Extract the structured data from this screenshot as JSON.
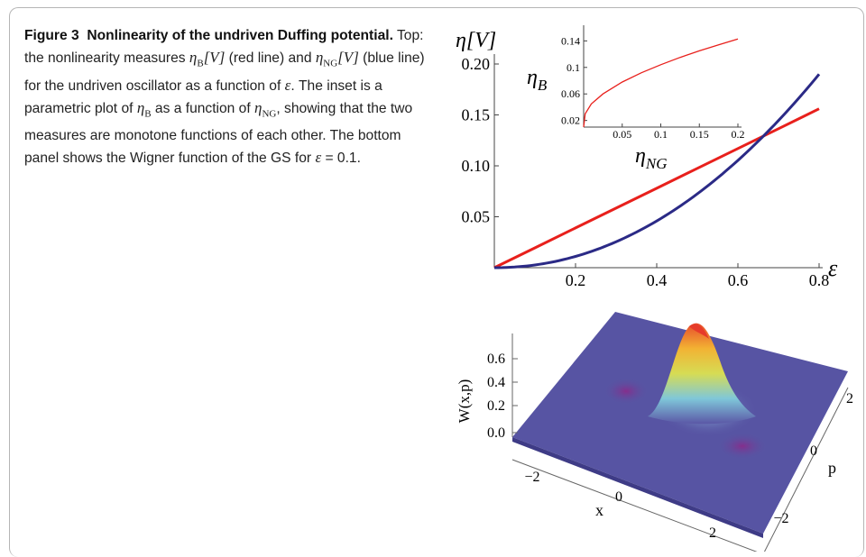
{
  "caption": {
    "figure_label": "Figure 3",
    "title": "Nonlinearity of the undriven Duffing potential.",
    "text_1": "Top: the nonlinearity measures ",
    "eta_b": "η",
    "sub_b": "B",
    "v_unit_1": "[V]",
    "text_2": " (red line) and ",
    "eta_ng": "η",
    "sub_ng": "NG",
    "v_unit_2": "[V]",
    "text_3": " (blue line) for the undriven oscillator as a function of ",
    "eps_1": "ε",
    "text_4": ". The inset is a parametric plot of ",
    "eta_b2": "η",
    "sub_b2": "B",
    "text_5": " as a function of ",
    "eta_ng2": "η",
    "sub_ng2": "NG",
    "text_6": ", showing that the two measures are monotone functions of each other. The bottom panel shows the Wigner function of the GS for ",
    "eps_2": "ε",
    "text_7": " = 0.1."
  },
  "top_plot": {
    "ylabel": "η[V]",
    "xlabel": "ε",
    "yticks": [
      "0.05",
      "0.10",
      "0.15",
      "0.20"
    ],
    "xticks": [
      "0.2",
      "0.4",
      "0.6",
      "0.8"
    ]
  },
  "inset": {
    "ylabel": "η_B",
    "ylabel_main": "η",
    "ylabel_sub": "B",
    "xlabel_main": "η",
    "xlabel_sub": "NG",
    "yticks": [
      "0.02",
      "0.06",
      "0.1",
      "0.14"
    ],
    "xticks": [
      "0.05",
      "0.1",
      "0.15",
      "0.2"
    ]
  },
  "bottom_plot": {
    "zlabel": "W(x,p)",
    "zticks": [
      "0.0",
      "0.2",
      "0.4",
      "0.6"
    ],
    "xlabel": "x",
    "xticks": [
      "−2",
      "0",
      "2"
    ],
    "plabel": "p",
    "pticks": [
      "2",
      "0",
      "−2"
    ]
  },
  "chart_data": [
    {
      "type": "line",
      "x": [
        0.0,
        0.1,
        0.2,
        0.3,
        0.4,
        0.5,
        0.6,
        0.7,
        0.8
      ],
      "series": [
        {
          "values": [
            0.0,
            0.0195,
            0.039,
            0.0585,
            0.078,
            0.0975,
            0.117,
            0.1365,
            0.156
          ],
          "color": "#e8201c"
        },
        {
          "values": [
            0.0,
            0.0028,
            0.0117,
            0.0268,
            0.048,
            0.075,
            0.107,
            0.145,
            0.19
          ],
          "color": "#2b2a86"
        }
      ],
      "xlabel": "ε",
      "ylabel": "η[V]",
      "xlim": [
        0,
        0.8
      ],
      "ylim": [
        0,
        0.2
      ],
      "grid": false
    },
    {
      "type": "line",
      "x": [
        0.0,
        0.002,
        0.01,
        0.025,
        0.05,
        0.075,
        0.1,
        0.125,
        0.15,
        0.175,
        0.2
      ],
      "series": [
        {
          "values": [
            0.01,
            0.03,
            0.045,
            0.06,
            0.078,
            0.092,
            0.104,
            0.115,
            0.125,
            0.134,
            0.143
          ],
          "color": "#e8201c"
        }
      ],
      "xlabel": "η_NG",
      "ylabel": "η_B",
      "xlim": [
        0,
        0.2
      ],
      "ylim": [
        0.01,
        0.15
      ]
    }
  ]
}
